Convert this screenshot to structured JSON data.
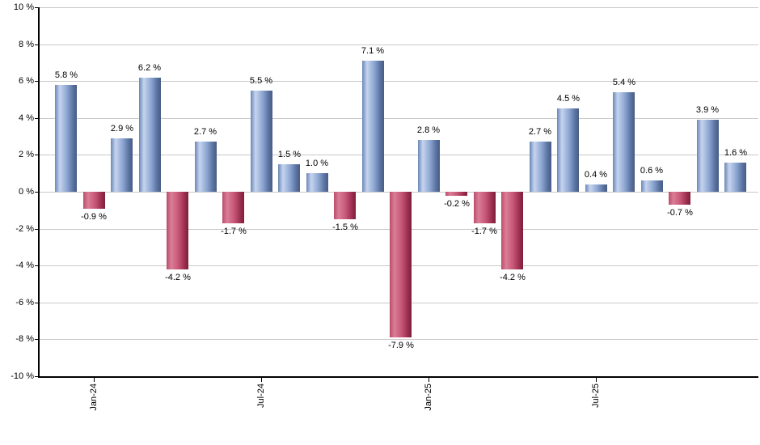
{
  "chart_data": {
    "type": "bar",
    "title": "",
    "xlabel": "",
    "ylabel": "",
    "ylim": [
      -10,
      10
    ],
    "grid": true,
    "legend": false,
    "background": "#ffffff",
    "y_ticks": [
      10,
      8,
      6,
      4,
      2,
      0,
      -2,
      -4,
      -6,
      -8,
      -10
    ],
    "y_tick_labels": [
      "10 %",
      "8 %",
      "6 %",
      "4 %",
      "2 %",
      "0 %",
      "-2 %",
      "-4 %",
      "-6 %",
      "-8 %",
      "-10 %"
    ],
    "values": [
      5.8,
      -0.9,
      2.9,
      6.2,
      -4.2,
      2.7,
      -1.7,
      5.5,
      1.5,
      1.0,
      -1.5,
      7.1,
      -7.9,
      2.8,
      -0.2,
      -1.7,
      -4.2,
      2.7,
      4.5,
      0.4,
      5.4,
      0.6,
      -0.7,
      3.9,
      1.6
    ],
    "value_labels": [
      "5.8 %",
      "-0.9 %",
      "2.9 %",
      "6.2 %",
      "-4.2 %",
      "2.7 %",
      "-1.7 %",
      "5.5 %",
      "1.5 %",
      "1.0 %",
      "-1.5 %",
      "7.1 %",
      "-7.9 %",
      "2.8 %",
      "-0.2 %",
      "-1.7 %",
      "-4.2 %",
      "2.7 %",
      "4.5 %",
      "0.4 %",
      "5.4 %",
      "0.6 %",
      "-0.7 %",
      "3.9 %",
      "1.6 %"
    ],
    "x_tick_labels": [
      {
        "index": 1,
        "label": "Jan-24"
      },
      {
        "index": 7,
        "label": "Jul-24"
      },
      {
        "index": 13,
        "label": "Jan-25"
      },
      {
        "index": 19,
        "label": "Jul-25"
      }
    ],
    "colors": {
      "positive_bar": "#8ca6d2",
      "negative_bar": "#c65576",
      "grid": "#c9c9c9",
      "axis": "#000000",
      "label_text": "#000000"
    }
  }
}
